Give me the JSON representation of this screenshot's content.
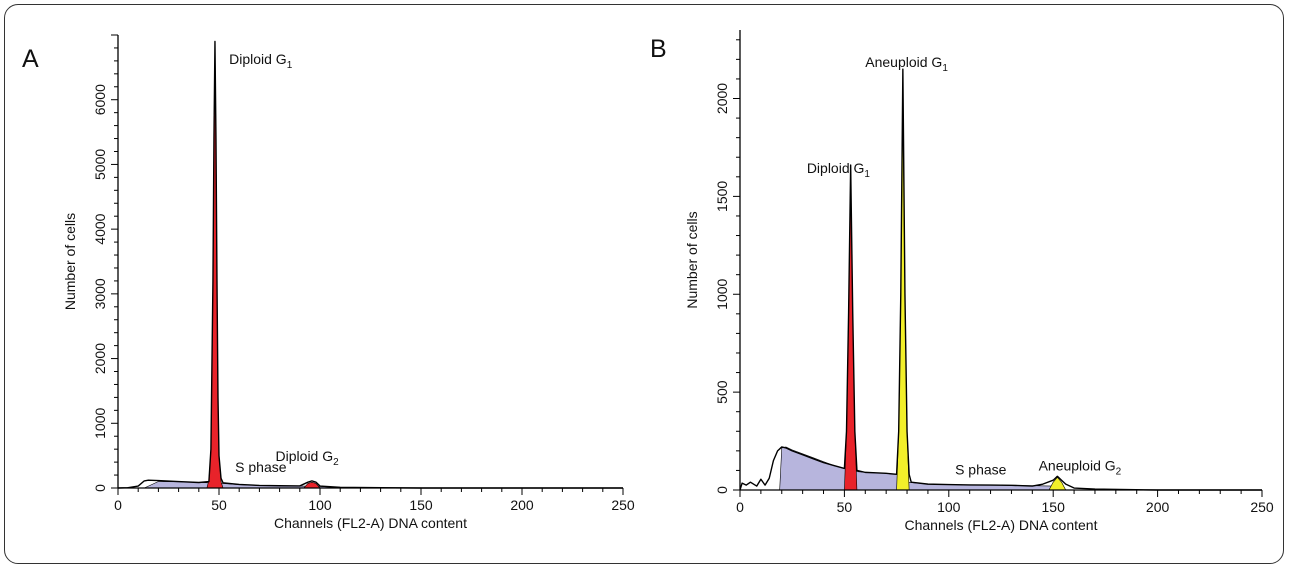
{
  "colors": {
    "s_phase_fill": "#b7b5dd",
    "diploid_fill": "#e8232a",
    "aneuploid_fill": "#f2ef2a",
    "outline": "#000000"
  },
  "chart_data": [
    {
      "panel_label": "A",
      "type": "area",
      "xlabel": "Channels (FL2-A) DNA content",
      "ylabel": "Number of cells",
      "xlim": [
        0,
        250
      ],
      "ylim": [
        0,
        7000
      ],
      "x_ticks": [
        "0",
        "50",
        "100",
        "150",
        "200",
        "250"
      ],
      "y_ticks": [
        "0",
        "1000",
        "2000",
        "3000",
        "4000",
        "5000",
        "6000"
      ],
      "y_tick_values": [
        0,
        1000,
        2000,
        3000,
        4000,
        5000,
        6000
      ],
      "annotations": [
        {
          "text": "Diploid G",
          "sub": "1",
          "x": 55,
          "y": 6550
        },
        {
          "text": "S phase",
          "sub": "",
          "x": 58,
          "y": 250
        },
        {
          "text": "Diploid G",
          "sub": "2",
          "x": 78,
          "y": 420
        }
      ],
      "series": [
        {
          "role": "S phase",
          "fill": "s_phase",
          "x": [
            13,
            20,
            30,
            40,
            45,
            48,
            50,
            60,
            70,
            80,
            90,
            95,
            100,
            110
          ],
          "y": [
            0,
            100,
            95,
            85,
            80,
            80,
            75,
            50,
            40,
            35,
            30,
            28,
            25,
            0
          ]
        },
        {
          "role": "Diploid G1",
          "fill": "diploid",
          "x": [
            44,
            45,
            46,
            47,
            47.5,
            48,
            48.5,
            49,
            49.5,
            50,
            51,
            52
          ],
          "y": [
            0,
            120,
            600,
            3200,
            5400,
            6900,
            5400,
            3200,
            1400,
            500,
            100,
            0
          ]
        },
        {
          "role": "Diploid G2",
          "fill": "diploid",
          "x": [
            92,
            94,
            96,
            98,
            100
          ],
          "y": [
            0,
            70,
            90,
            70,
            0
          ]
        },
        {
          "role": "Total",
          "fill": "none",
          "x": [
            0,
            5,
            10,
            13,
            15,
            20,
            30,
            40,
            45,
            46,
            47,
            47.5,
            48,
            48.5,
            49,
            49.5,
            50,
            51,
            52,
            60,
            70,
            80,
            90,
            94,
            96,
            98,
            100,
            110,
            150,
            200,
            250
          ],
          "y": [
            0,
            5,
            30,
            110,
            120,
            115,
            100,
            85,
            100,
            600,
            3200,
            5400,
            6900,
            5400,
            3200,
            1400,
            500,
            150,
            80,
            55,
            40,
            35,
            32,
            90,
            110,
            90,
            30,
            10,
            0,
            0,
            0
          ]
        }
      ]
    },
    {
      "panel_label": "B",
      "type": "area",
      "xlabel": "Channels (FL2-A) DNA content",
      "ylabel": "Number of cells",
      "xlim": [
        0,
        250
      ],
      "ylim": [
        0,
        2350
      ],
      "x_ticks": [
        "0",
        "50",
        "100",
        "150",
        "200",
        "250"
      ],
      "y_ticks": [
        "0",
        "500",
        "1000",
        "1500",
        "2000"
      ],
      "y_tick_values": [
        0,
        500,
        1000,
        1500,
        2000
      ],
      "annotations": [
        {
          "text": "Aneuploid G",
          "sub": "1",
          "x": 60,
          "y": 2160
        },
        {
          "text": "Diploid G",
          "sub": "1",
          "x": 32,
          "y": 1620
        },
        {
          "text": "S phase",
          "sub": "",
          "x": 103,
          "y": 80
        },
        {
          "text": "Aneuploid G",
          "sub": "2",
          "x": 143,
          "y": 100
        }
      ],
      "series": [
        {
          "role": "S phase",
          "fill": "s_phase",
          "x": [
            19,
            20,
            22,
            25,
            30,
            35,
            40,
            45,
            50,
            52,
            55,
            60,
            65,
            70,
            75,
            78,
            80,
            90,
            100,
            110,
            120,
            130,
            140,
            150,
            155,
            160
          ],
          "y": [
            0,
            215,
            220,
            205,
            185,
            165,
            145,
            125,
            110,
            100,
            95,
            90,
            88,
            85,
            80,
            75,
            40,
            30,
            28,
            26,
            25,
            24,
            22,
            20,
            0,
            0
          ]
        },
        {
          "role": "Diploid G1",
          "fill": "diploid",
          "x": [
            50,
            51,
            52,
            53,
            54,
            55,
            56
          ],
          "y": [
            0,
            300,
            900,
            1640,
            900,
            300,
            0
          ]
        },
        {
          "role": "Aneuploid G1",
          "fill": "aneuploid",
          "x": [
            75,
            76,
            77,
            78,
            79,
            80,
            81
          ],
          "y": [
            0,
            300,
            1000,
            2000,
            1000,
            300,
            0
          ]
        },
        {
          "role": "Aneuploid G2",
          "fill": "aneuploid",
          "x": [
            148,
            150,
            152,
            154,
            156
          ],
          "y": [
            0,
            40,
            65,
            40,
            0
          ]
        },
        {
          "role": "Total",
          "fill": "none",
          "x": [
            0,
            1,
            3,
            5,
            8,
            10,
            12,
            14,
            16,
            18,
            20,
            22,
            25,
            30,
            35,
            40,
            45,
            50,
            51,
            52,
            53,
            54,
            55,
            56,
            58,
            60,
            65,
            70,
            75,
            76,
            77,
            78,
            79,
            80,
            81,
            82,
            90,
            100,
            110,
            120,
            130,
            140,
            145,
            150,
            152,
            154,
            156,
            160,
            170,
            200,
            250
          ],
          "y": [
            0,
            35,
            25,
            40,
            20,
            55,
            25,
            60,
            150,
            200,
            220,
            215,
            200,
            180,
            160,
            140,
            125,
            110,
            300,
            900,
            1660,
            900,
            300,
            100,
            95,
            90,
            88,
            85,
            80,
            300,
            1000,
            2150,
            1000,
            300,
            80,
            40,
            30,
            28,
            26,
            25,
            24,
            20,
            30,
            50,
            70,
            50,
            30,
            10,
            5,
            0,
            0
          ]
        }
      ]
    }
  ]
}
